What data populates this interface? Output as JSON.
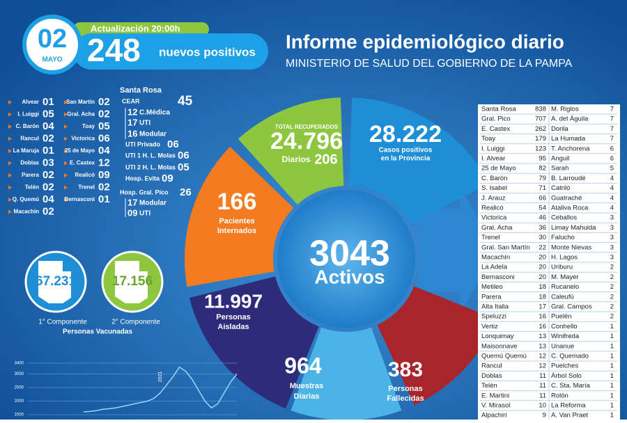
{
  "header": {
    "day": "02",
    "month": "MAYO",
    "update": "Actualización 20:00h",
    "new_cases": "248",
    "new_cases_label": "nuevos positivos",
    "title": "Informe epidemiológico diario",
    "subtitle": "MINISTERIO DE SALUD DEL GOBIERNO DE LA PAMPA"
  },
  "localities": [
    [
      {
        "name": "Alvear",
        "value": "01"
      },
      {
        "name": "I. Luiggi",
        "value": "05"
      },
      {
        "name": "C. Barón",
        "value": "04"
      },
      {
        "name": "Rancul",
        "value": "02"
      },
      {
        "name": "La Maruja",
        "value": "01"
      },
      {
        "name": "Doblas",
        "value": "03"
      },
      {
        "name": "Parera",
        "value": "02"
      },
      {
        "name": "Telén",
        "value": "02"
      },
      {
        "name": "Q. Quemú",
        "value": "04"
      },
      {
        "name": "Macachín",
        "value": "02"
      }
    ],
    [
      {
        "name": "San Martín",
        "value": "02"
      },
      {
        "name": "Gral. Acha",
        "value": "02"
      },
      {
        "name": "Toay",
        "value": "05"
      },
      {
        "name": "Victorica",
        "value": "06"
      },
      {
        "name": "25 de Mayo",
        "value": "04"
      },
      {
        "name": "E. Castex",
        "value": "12"
      },
      {
        "name": "Realicó",
        "value": "09"
      },
      {
        "name": "Trenel",
        "value": "02"
      },
      {
        "name": "Bernasconi",
        "value": "01"
      }
    ]
  ],
  "hospitals": {
    "title": "Santa Rosa",
    "items": [
      {
        "label": "CEAR",
        "value": "45"
      },
      {
        "value": "12",
        "label": "C.Médica"
      },
      {
        "value": "17",
        "label": "UTI"
      },
      {
        "value": "16",
        "label": "Modular"
      },
      {
        "label": "UTI Privado",
        "value": "06"
      },
      {
        "label": "UTI 1 H. L. Molas",
        "value": "06"
      },
      {
        "label": "UTI 2 H. L. Molas",
        "value": "05"
      },
      {
        "label": "Hosp. Evita",
        "value": "09"
      },
      {
        "label": "Hosp. Gral. Pico",
        "value": "26"
      },
      {
        "value": "17",
        "label": "Modular"
      },
      {
        "value": "09",
        "label": "UTI"
      }
    ]
  },
  "vaccines": {
    "first": {
      "value": "67.231",
      "label": "1° Componente"
    },
    "second": {
      "value": "17.156",
      "label": "2° Componente"
    },
    "caption": "Personas Vacunadas"
  },
  "summary": {
    "recovered": {
      "heading": "TOTAL RECUPERADOS",
      "value": "24.796",
      "daily_label": "Diarios",
      "daily": "206"
    },
    "cases": {
      "value": "28.222",
      "lines": [
        "Casos positivos",
        "en la Provincia"
      ]
    },
    "hospitalized": {
      "value": "166",
      "lines": [
        "Pacientes",
        "Internados"
      ]
    },
    "active": {
      "value": "3043",
      "label": "Activos"
    },
    "isolated": {
      "value": "11.997",
      "lines": [
        "Personas",
        "Aisladas"
      ]
    },
    "samples": {
      "value": "964",
      "lines": [
        "Muestras",
        "Diarias"
      ]
    },
    "deaths": {
      "value": "383",
      "lines": [
        "Personas",
        "Fallecidas"
      ]
    }
  },
  "table": [
    [
      [
        "Santa Rosa",
        838
      ],
      [
        "Gral. Pico",
        707
      ],
      [
        "E. Castex",
        262
      ],
      [
        "Toay",
        179
      ],
      [
        "I. Luiggi",
        123
      ],
      [
        "I. Alvear",
        95
      ],
      [
        "25 de Mayo",
        82
      ],
      [
        "C. Barón",
        79
      ],
      [
        "S. Isabel",
        71
      ],
      [
        "J. Arauz",
        66
      ],
      [
        "Realicó",
        54
      ],
      [
        "Victorica",
        46
      ],
      [
        "Gral. Acha",
        36
      ],
      [
        "Trenel",
        30
      ],
      [
        "Gral. San Martín",
        22
      ],
      [
        "Macachín",
        20
      ],
      [
        "La Adela",
        20
      ],
      [
        "Bernasconi",
        20
      ],
      [
        "Metileo",
        18
      ],
      [
        "Parera",
        18
      ],
      [
        "Alta Italia",
        17
      ],
      [
        "Speluzzi",
        16
      ],
      [
        "Vertiz",
        16
      ],
      [
        "Lonquimay",
        13
      ],
      [
        "Maisonnave",
        13
      ],
      [
        "Quemú Quemú",
        12
      ],
      [
        "Rancul",
        12
      ],
      [
        "Doblas",
        11
      ],
      [
        "Telén",
        11
      ],
      [
        "E. Martini",
        11
      ],
      [
        "V. Mirasol",
        10
      ],
      [
        "Alpachiri",
        9
      ]
    ],
    [
      [
        "M. Riglos",
        7
      ],
      [
        "A. del Águila",
        7
      ],
      [
        "Dorila",
        7
      ],
      [
        "La Humada",
        7
      ],
      [
        "T. Anchorena",
        6
      ],
      [
        "Anguil",
        6
      ],
      [
        "Sarah",
        5
      ],
      [
        "B. Larroudé",
        4
      ],
      [
        "Catriló",
        4
      ],
      [
        "Guatraché",
        4
      ],
      [
        "Ataliva Roca",
        4
      ],
      [
        "Ceballos",
        3
      ],
      [
        "Limay Mahuida",
        3
      ],
      [
        "Falucho",
        3
      ],
      [
        "Monte Nievas",
        3
      ],
      [
        "H. Lagos",
        3
      ],
      [
        "Uriburu",
        2
      ],
      [
        "M. Mayer",
        2
      ],
      [
        "Rucanelo",
        2
      ],
      [
        "Caleufú",
        2
      ],
      [
        "Gral. Campos",
        2
      ],
      [
        "Puelén",
        2
      ],
      [
        "Conhello",
        1
      ],
      [
        "Winifreda",
        1
      ],
      [
        "Unanue",
        1
      ],
      [
        "C. Quemado",
        1
      ],
      [
        "Puelches",
        1
      ],
      [
        "Árbol Solo",
        1
      ],
      [
        "C. Sta. María",
        1
      ],
      [
        "Rolón",
        1
      ],
      [
        "La Reforma",
        1
      ],
      [
        "A. Van Praet",
        1
      ]
    ]
  ],
  "chart_data": {
    "type": "line",
    "annotation": "2021",
    "categories": [
      null,
      null,
      null,
      null,
      null,
      null,
      null,
      null,
      null,
      null,
      null,
      null,
      null,
      null,
      null,
      null,
      null,
      null,
      null,
      null,
      null,
      null,
      null,
      null,
      null
    ],
    "series": [
      {
        "color": "#9fd6f5",
        "values": [
          1600,
          1620,
          1650,
          1700,
          1720,
          1750,
          1800,
          1850,
          1900,
          1950,
          2000,
          2100,
          2300,
          2600,
          2900,
          3250,
          3100,
          2800,
          2400,
          2000,
          1750,
          1900,
          2300,
          2700,
          3000
        ]
      }
    ],
    "ylim": [
      1450,
      3450
    ],
    "yticks": [
      1500,
      2000,
      2500,
      3000,
      3400
    ],
    "grid": true
  }
}
